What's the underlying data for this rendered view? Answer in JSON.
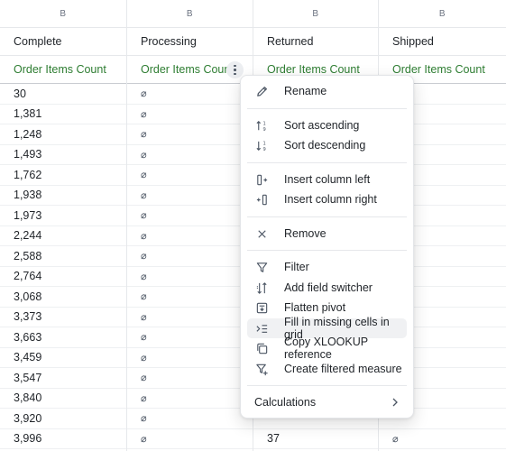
{
  "columns": [
    {
      "letter": "B",
      "header": "Complete",
      "measure": "Order Items Count",
      "cells": [
        "30",
        "1,381",
        "1,248",
        "1,493",
        "1,762",
        "1,938",
        "1,973",
        "2,244",
        "2,588",
        "2,764",
        "3,068",
        "3,373",
        "3,663",
        "3,459",
        "3,547",
        "3,840",
        "3,920",
        "3,996"
      ]
    },
    {
      "letter": "B",
      "header": "Processing",
      "measure": "Order Items Count",
      "cells": [
        "⌀",
        "⌀",
        "⌀",
        "⌀",
        "⌀",
        "⌀",
        "⌀",
        "⌀",
        "⌀",
        "⌀",
        "⌀",
        "⌀",
        "⌀",
        "⌀",
        "⌀",
        "⌀",
        "⌀",
        "⌀"
      ]
    },
    {
      "letter": "B",
      "header": "Returned",
      "measure": "Order Items Count",
      "cells": [
        "",
        "",
        "",
        "",
        "",
        "",
        "",
        "",
        "",
        "",
        "",
        "",
        "",
        "",
        "",
        "",
        "",
        "37"
      ]
    },
    {
      "letter": "B",
      "header": "Shipped",
      "measure": "Order Items Count",
      "cells": [
        "",
        "",
        "",
        "",
        "",
        "",
        "",
        "",
        "",
        "",
        "",
        "",
        "",
        "",
        "",
        "",
        "",
        "⌀"
      ]
    }
  ],
  "menu": {
    "rename": "Rename",
    "sort_asc": "Sort ascending",
    "sort_desc": "Sort descending",
    "insert_left": "Insert column left",
    "insert_right": "Insert column right",
    "remove": "Remove",
    "filter": "Filter",
    "add_field_switcher": "Add field switcher",
    "flatten_pivot": "Flatten pivot",
    "fill_missing": "Fill in missing cells in grid",
    "copy_xlookup": "Copy XLOOKUP reference",
    "create_filtered_measure": "Create filtered measure",
    "calculations": "Calculations"
  },
  "colors": {
    "measure": "#2e7d32",
    "empty_marker": "#4b5563"
  }
}
